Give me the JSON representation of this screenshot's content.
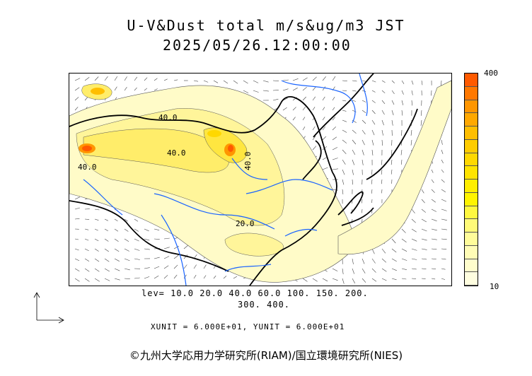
{
  "header": {
    "title_line1": "U-V&Dust total m/s&ug/m3 JST",
    "title_line2": "2025/05/26.12:00:00"
  },
  "map": {
    "contour_labels": [
      "40.0",
      "40.0",
      "40.0",
      "40.0",
      "20.0"
    ]
  },
  "colorbar": {
    "max_label": "400",
    "min_label": "10",
    "colors": [
      "#ff5a00",
      "#ff7800",
      "#ff9600",
      "#ffa800",
      "#ffbe00",
      "#ffcc00",
      "#ffd800",
      "#ffe400",
      "#ffee00",
      "#fff400",
      "#fff840",
      "#fffa78",
      "#fffc9a",
      "#fffcb6",
      "#fffdcc",
      "#fffee0"
    ]
  },
  "levels": {
    "line1": "lev= 10.0 20.0 40.0 60.0 100. 150. 200.",
    "line2": "300. 400."
  },
  "units": {
    "text": "XUNIT = 6.000E+01, YUNIT = 6.000E+01"
  },
  "footer": {
    "credit": "©九州大学応用力学研究所(RIAM)/国立環境研究所(NIES)"
  }
}
